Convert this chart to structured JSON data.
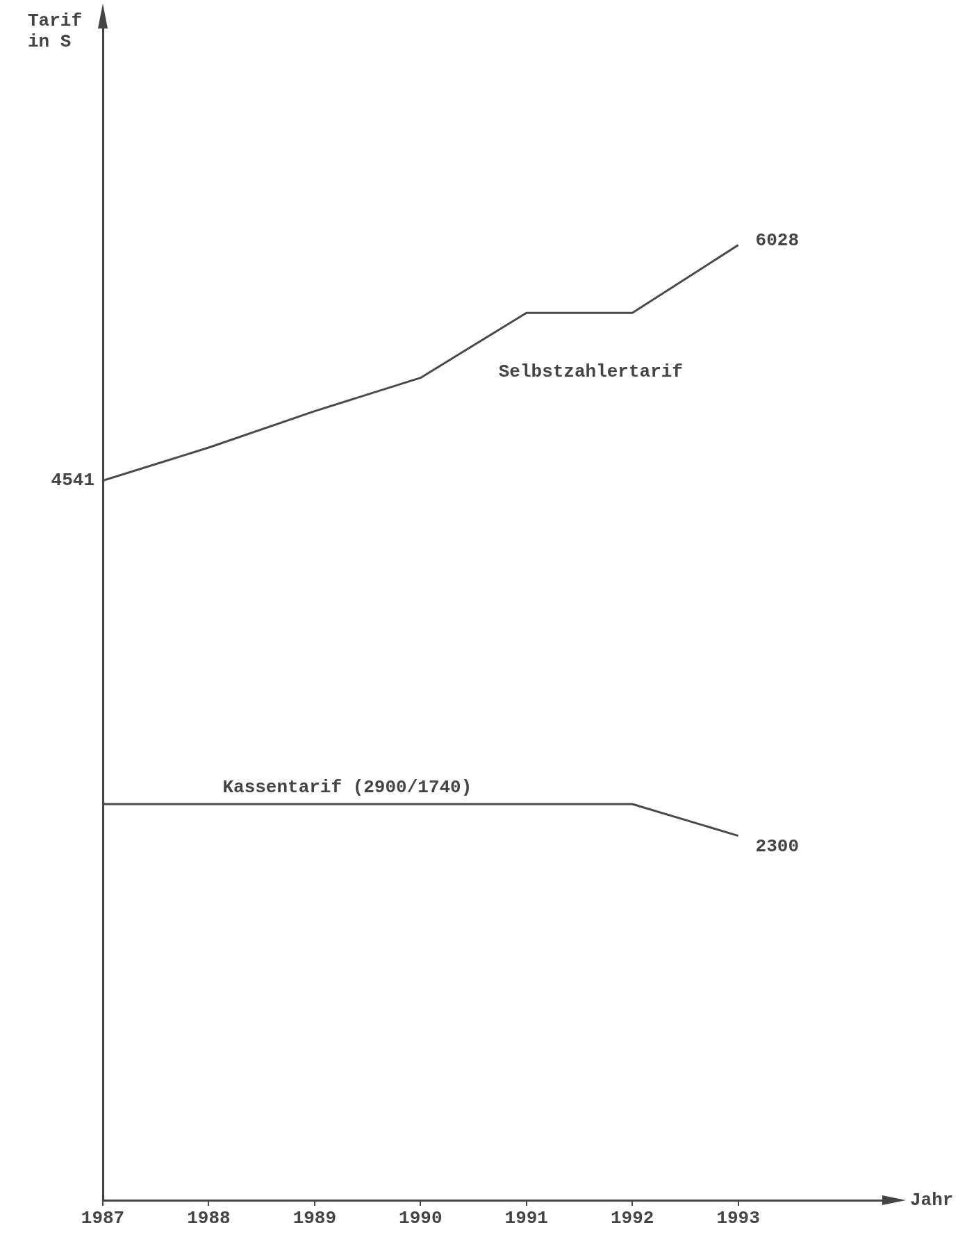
{
  "chart_data": {
    "type": "line",
    "xlabel": "Jahr",
    "ylabel": "Tarif in S",
    "x": [
      1987,
      1988,
      1989,
      1990,
      1991,
      1992,
      1993
    ],
    "xlim": [
      1987,
      1994.4
    ],
    "xticks": [
      1987,
      1988,
      1989,
      1990,
      1991,
      1992,
      1993
    ],
    "ylim": [
      0,
      7500
    ],
    "series": [
      {
        "name": "Selbstzahlertarif",
        "color": "#4a4a4a",
        "values": [
          4541,
          4750,
          4980,
          5190,
          5600,
          5600,
          6028
        ],
        "value_labels": [
          "4541",
          null,
          null,
          null,
          null,
          null,
          "6028"
        ]
      },
      {
        "name": "Kassentarif (2900/1740)",
        "color": "#4a4a4a",
        "values": [
          2500,
          2500,
          2500,
          2500,
          2500,
          2500,
          2300
        ],
        "value_labels": [
          null,
          null,
          null,
          null,
          null,
          null,
          "2300"
        ]
      }
    ],
    "legend": false,
    "marker": "none",
    "line_style": "solid"
  }
}
